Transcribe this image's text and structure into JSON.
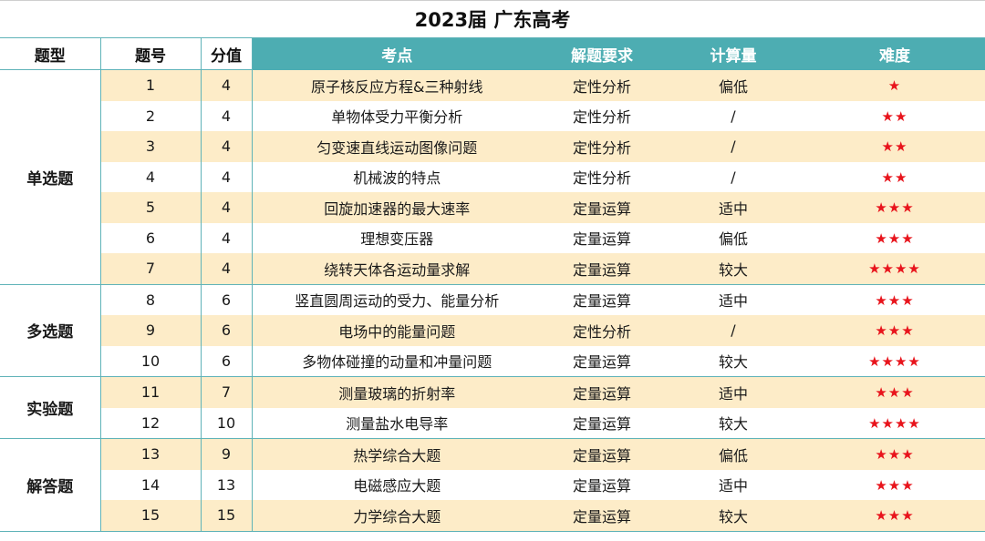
{
  "title": "2023届 广东高考",
  "headers": [
    "题型",
    "题号",
    "分值",
    "考点",
    "解题要求",
    "计算量",
    "难度"
  ],
  "groups": [
    {
      "type": "单选题",
      "rows": [
        {
          "num": "1",
          "score": "4",
          "topic": "原子核反应方程&三种射线",
          "req": "定性分析",
          "calc": "偏低",
          "stars": "★"
        },
        {
          "num": "2",
          "score": "4",
          "topic": "单物体受力平衡分析",
          "req": "定性分析",
          "calc": "/",
          "stars": "★★"
        },
        {
          "num": "3",
          "score": "4",
          "topic": "匀变速直线运动图像问题",
          "req": "定性分析",
          "calc": "/",
          "stars": "★★"
        },
        {
          "num": "4",
          "score": "4",
          "topic": "机械波的特点",
          "req": "定性分析",
          "calc": "/",
          "stars": "★★"
        },
        {
          "num": "5",
          "score": "4",
          "topic": "回旋加速器的最大速率",
          "req": "定量运算",
          "calc": "适中",
          "stars": "★★★"
        },
        {
          "num": "6",
          "score": "4",
          "topic": "理想变压器",
          "req": "定量运算",
          "calc": "偏低",
          "stars": "★★★"
        },
        {
          "num": "7",
          "score": "4",
          "topic": "绕转天体各运动量求解",
          "req": "定量运算",
          "calc": "较大",
          "stars": "★★★★"
        }
      ]
    },
    {
      "type": "多选题",
      "rows": [
        {
          "num": "8",
          "score": "6",
          "topic": "竖直圆周运动的受力、能量分析",
          "req": "定量运算",
          "calc": "适中",
          "stars": "★★★"
        },
        {
          "num": "9",
          "score": "6",
          "topic": "电场中的能量问题",
          "req": "定性分析",
          "calc": "/",
          "stars": "★★★"
        },
        {
          "num": "10",
          "score": "6",
          "topic": "多物体碰撞的动量和冲量问题",
          "req": "定量运算",
          "calc": "较大",
          "stars": "★★★★"
        }
      ]
    },
    {
      "type": "实验题",
      "rows": [
        {
          "num": "11",
          "score": "7",
          "topic": "测量玻璃的折射率",
          "req": "定量运算",
          "calc": "适中",
          "stars": "★★★"
        },
        {
          "num": "12",
          "score": "10",
          "topic": "测量盐水电导率",
          "req": "定量运算",
          "calc": "较大",
          "stars": "★★★★"
        }
      ]
    },
    {
      "type": "解答题",
      "rows": [
        {
          "num": "13",
          "score": "9",
          "topic": "热学综合大题",
          "req": "定量运算",
          "calc": "偏低",
          "stars": "★★★"
        },
        {
          "num": "14",
          "score": "13",
          "topic": "电磁感应大题",
          "req": "定量运算",
          "calc": "适中",
          "stars": "★★★"
        },
        {
          "num": "15",
          "score": "15",
          "topic": "力学综合大题",
          "req": "定量运算",
          "calc": "较大",
          "stars": "★★★"
        }
      ]
    }
  ],
  "colors": {
    "teal_header": "#4dadb2",
    "stripe": "#fdecc8",
    "star": "#e8141c",
    "grid": "#5fb3b8"
  }
}
